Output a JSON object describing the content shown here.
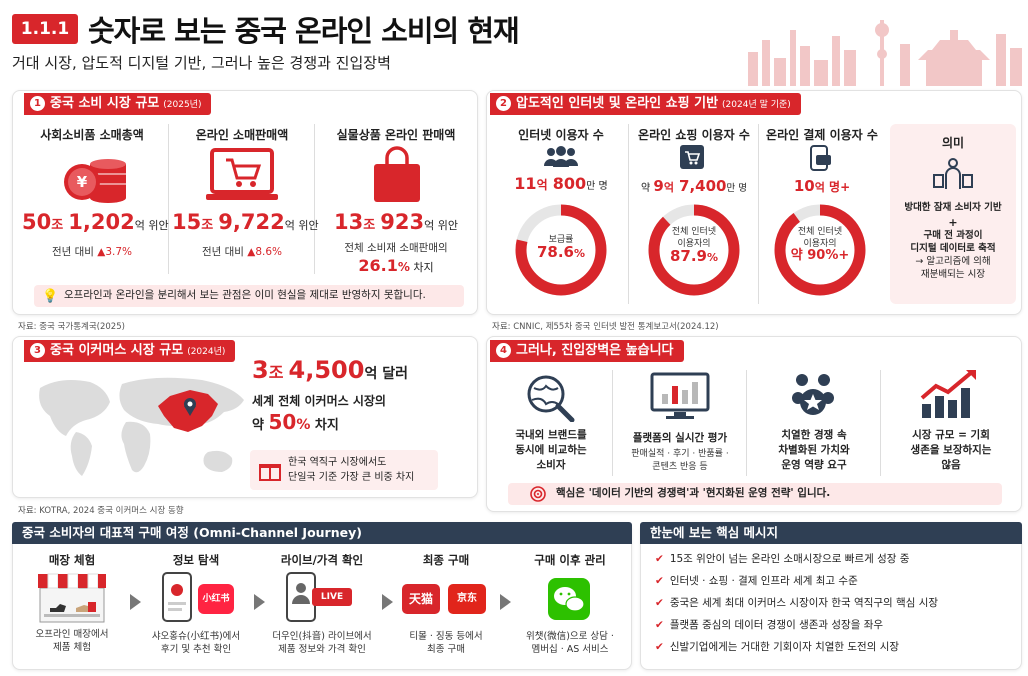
{
  "header": {
    "badge": "1.1.1",
    "title": "숫자로 보는 중국 온라인 소비의 현재",
    "subtitle": "거대 시장, 압도적 디지털 기반, 그러나 높은 경쟁과 진입장벽"
  },
  "section1": {
    "num": "1",
    "title": "중국 소비 시장 규모",
    "year": "(2025년)",
    "items": [
      {
        "label": "사회소비품 소매총액",
        "num1": "50",
        "unit1": "조",
        "num2": "1,202",
        "unit2": "억 위안",
        "sub_prefix": "전년 대비 ",
        "sub_value": "▲3.7%"
      },
      {
        "label": "온라인 소매판매액",
        "num1": "15",
        "unit1": "조",
        "num2": "9,722",
        "unit2": "억 위안",
        "sub_prefix": "전년 대비 ",
        "sub_value": "▲8.6%"
      },
      {
        "label": "실물상품 온라인 판매액",
        "num1": "13",
        "unit1": "조",
        "num2": "923",
        "unit2": "억 위안",
        "sub_line1": "전체 소비재 소매판매의",
        "sub_value": "26.1",
        "sub_unit": "%",
        "sub_tail": " 차지"
      }
    ],
    "note": "오프라인과 온라인을 분리해서 보는 관점은 이미 현실을 제대로 반영하지 못합니다.",
    "source": "자료: 중국 국가통계국(2025)"
  },
  "section2": {
    "num": "2",
    "title": "압도적인 인터넷 및 온라인 쇼핑 기반",
    "year": "(2024년 말 기준)",
    "items": [
      {
        "label": "인터넷 이용자 수",
        "prefix": "",
        "num1": "11",
        "unit1": "억",
        "num2": "800",
        "unit2": "만 명",
        "ring_label1": "보급률",
        "ring_label2": "",
        "ring_value": "78.6",
        "ring_unit": "%",
        "pct": 78.6
      },
      {
        "label": "온라인 쇼핑 이용자 수",
        "prefix": "약 ",
        "num1": "9",
        "unit1": "억",
        "num2": "7,400",
        "unit2": "만 명",
        "ring_label1": "전체 인터넷",
        "ring_label2": "이용자의",
        "ring_value": "87.9",
        "ring_unit": "%",
        "pct": 87.9
      },
      {
        "label": "온라인 결제 이용자 수",
        "prefix": "",
        "num1": "10",
        "unit1": "억",
        "num2": "",
        "unit2": " 명+",
        "ring_label1": "전체 인터넷",
        "ring_label2": "이용자의",
        "ring_value": "약 90%+",
        "ring_unit": "",
        "pct": 90
      }
    ],
    "meaning": {
      "title": "의미",
      "line1": "방대한 잠재 소비자 기반",
      "plus": "+",
      "line2": "구매 전 과정이",
      "line3": "디지털 데이터로 축적",
      "line4": "→ 알고리즘에 의해",
      "line5": "재분배되는 시장"
    },
    "source": "자료: CNNIC, 제55차 중국 인터넷 발전 통계보고서(2024.12)"
  },
  "section3": {
    "num": "3",
    "title": "중국 이커머스 시장 규모",
    "year": "(2024년)",
    "big_num1": "3",
    "big_unit1": "조",
    "big_num2": "4,500",
    "big_unit2": "억 달러",
    "line1": "세계 전체 이커머스 시장의",
    "line2_prefix": "약 ",
    "line2_value": "50",
    "line2_unit": "%",
    "line2_tail": " 차지",
    "note_line1": "한국 역직구 시장에서도",
    "note_line2": "단일국 기준 가장 큰 비중 차지",
    "source": "자료: KOTRA, 2024 중국 이커머스 시장 동향"
  },
  "section4": {
    "num": "4",
    "title": "그러나, 진입장벽은 높습니다",
    "items": [
      {
        "line1": "국내외 브랜드를",
        "line2": "동시에 비교하는",
        "line3": "소비자",
        "desc": ""
      },
      {
        "line1": "플랫폼의 실시간 평가",
        "line2": "",
        "line3": "",
        "desc": "판매실적 · 후기 · 반품률 ·",
        "desc2": "콘텐츠 반응 등"
      },
      {
        "line1": "치열한 경쟁 속",
        "line2": "차별화된 가치와",
        "line3": "운영 역량 요구",
        "desc": ""
      },
      {
        "line1": "시장 규모 = 기회",
        "line2": "생존을 보장하지는",
        "line3": "않음",
        "desc": ""
      }
    ],
    "note": "핵심은 '데이터 기반의 경쟁력'과 '현지화된 운영 전략' 입니다."
  },
  "journey": {
    "title": "중국 소비자의 대표적 구매 여정 (Omni-Channel Journey)",
    "steps": [
      {
        "title": "매장 체험",
        "desc1": "오프라인 매장에서",
        "desc2": "제품 체험"
      },
      {
        "title": "정보 탐색",
        "desc1": "샤오홍슈(小红书)에서",
        "desc2": "후기 및 추천 확인"
      },
      {
        "title": "라이브/가격 확인",
        "desc1": "더우인(抖音) 라이브에서",
        "desc2": "제품 정보와 가격 확인"
      },
      {
        "title": "최종 구매",
        "desc1": "티몰 · 징동 등에서",
        "desc2": "최종 구매"
      },
      {
        "title": "구매 이후 관리",
        "desc1": "위챗(微信)으로 상담 ·",
        "desc2": "멤버십 · AS 서비스"
      }
    ],
    "xhs_label": "小红书",
    "live_label": "LIVE",
    "tmall_label": "天猫",
    "jd_label": "京东"
  },
  "key_messages": {
    "title": "한눈에 보는 핵심 메시지",
    "items": [
      "15조 위안이 넘는 온라인 소매시장으로 빠르게 성장 중",
      "인터넷 · 쇼핑 · 결제 인프라 세계 최고 수준",
      "중국은 세계 최대 이커머스 시장이자 한국 역직구의 핵심 시장",
      "플랫폼 중심의 데이터 경쟁이 생존과 성장을 좌우",
      "신발기업에게는 거대한 기회이자 치열한 도전의 시장"
    ]
  },
  "colors": {
    "accent": "#d8262b",
    "navy": "#2f3f54",
    "pink": "#fde8e8"
  }
}
